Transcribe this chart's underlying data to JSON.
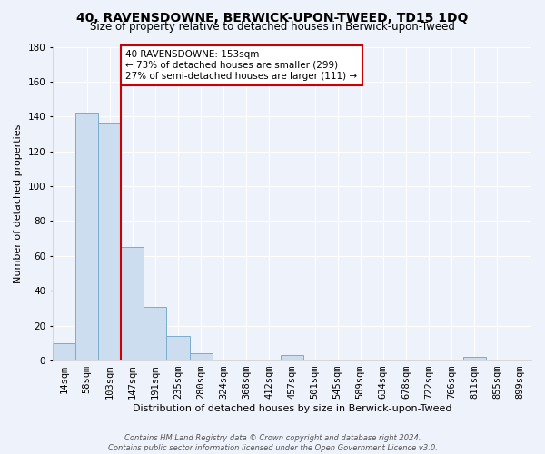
{
  "title": "40, RAVENSDOWNE, BERWICK-UPON-TWEED, TD15 1DQ",
  "subtitle": "Size of property relative to detached houses in Berwick-upon-Tweed",
  "xlabel": "Distribution of detached houses by size in Berwick-upon-Tweed",
  "ylabel": "Number of detached properties",
  "footer_line1": "Contains HM Land Registry data © Crown copyright and database right 2024.",
  "footer_line2": "Contains public sector information licensed under the Open Government Licence v3.0.",
  "bin_labels": [
    "14sqm",
    "58sqm",
    "103sqm",
    "147sqm",
    "191sqm",
    "235sqm",
    "280sqm",
    "324sqm",
    "368sqm",
    "412sqm",
    "457sqm",
    "501sqm",
    "545sqm",
    "589sqm",
    "634sqm",
    "678sqm",
    "722sqm",
    "766sqm",
    "811sqm",
    "855sqm",
    "899sqm"
  ],
  "bar_values": [
    10,
    142,
    136,
    65,
    31,
    14,
    4,
    0,
    0,
    0,
    3,
    0,
    0,
    0,
    0,
    0,
    0,
    0,
    2,
    0,
    0
  ],
  "bar_color": "#ccddf0",
  "bar_edge_color": "#7aadcc",
  "red_line_x": 3,
  "red_line_color": "#cc0000",
  "annotation_title": "40 RAVENSDOWNE: 153sqm",
  "annotation_line1": "← 73% of detached houses are smaller (299)",
  "annotation_line2": "27% of semi-detached houses are larger (111) →",
  "annotation_box_color": "#ffffff",
  "annotation_box_edge": "#cc0000",
  "ylim": [
    0,
    180
  ],
  "yticks": [
    0,
    20,
    40,
    60,
    80,
    100,
    120,
    140,
    160,
    180
  ],
  "background_color": "#eef2fb",
  "grid_color": "#ffffff",
  "title_fontsize": 10,
  "subtitle_fontsize": 8.5,
  "axis_label_fontsize": 8,
  "tick_fontsize": 7.5,
  "footer_fontsize": 6
}
